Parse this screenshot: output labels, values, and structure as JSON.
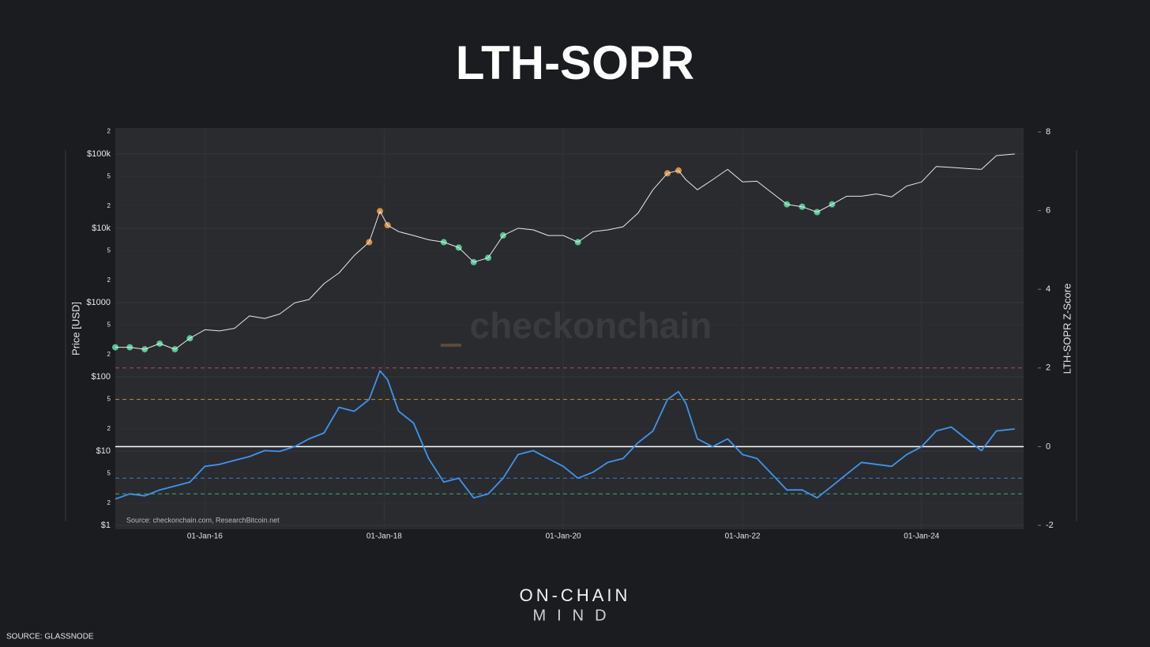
{
  "title": "LTH-SOPR",
  "chart_data": {
    "type": "line",
    "xlim": [
      "2015-01-01",
      "2025-02-20"
    ],
    "xticks": [
      {
        "value": "2016-01-01",
        "label": "01-Jan-16"
      },
      {
        "value": "2018-01-01",
        "label": "01-Jan-18"
      },
      {
        "value": "2020-01-01",
        "label": "01-Jan-20"
      },
      {
        "value": "2022-01-01",
        "label": "01-Jan-22"
      },
      {
        "value": "2024-01-01",
        "label": "01-Jan-24"
      }
    ],
    "ylabel": "Price [USD]",
    "yscale": "log",
    "ylim": [
      0.885,
      224000
    ],
    "yticks": [
      {
        "value": 1,
        "label": "$1"
      },
      2,
      5,
      {
        "value": 10,
        "label": "$10"
      },
      {
        "value": 20,
        "label": "2"
      },
      {
        "value": 50,
        "label": "5"
      },
      {
        "value": 100,
        "label": "$100"
      },
      {
        "value": 200,
        "label": "2"
      },
      {
        "value": 500,
        "label": "5"
      },
      {
        "value": 1000,
        "label": "$1000"
      },
      {
        "value": 2000,
        "label": "2"
      },
      {
        "value": 5000,
        "label": "5"
      },
      {
        "value": 10000,
        "label": "$10k"
      },
      {
        "value": 20000,
        "label": "2"
      },
      {
        "value": 50000,
        "label": "5"
      },
      {
        "value": 100000,
        "label": "$100k"
      },
      {
        "value": 200000,
        "label": "2"
      }
    ],
    "y2label": "LTH-SOPR Z-Score",
    "y2lim": [
      -2.1,
      8.1
    ],
    "y2ticks": [
      -2,
      0,
      2,
      4,
      6,
      8
    ],
    "grid": true,
    "x": [
      "2015-01-01",
      "2015-03-01",
      "2015-05-01",
      "2015-07-01",
      "2015-09-01",
      "2015-11-01",
      "2016-01-01",
      "2016-03-01",
      "2016-05-01",
      "2016-07-01",
      "2016-09-01",
      "2016-11-01",
      "2017-01-01",
      "2017-03-01",
      "2017-05-01",
      "2017-07-01",
      "2017-09-01",
      "2017-11-01",
      "2017-12-15",
      "2018-01-15",
      "2018-03-01",
      "2018-05-01",
      "2018-07-01",
      "2018-09-01",
      "2018-11-01",
      "2019-01-01",
      "2019-03-01",
      "2019-05-01",
      "2019-07-01",
      "2019-09-01",
      "2019-11-01",
      "2020-01-01",
      "2020-03-01",
      "2020-05-01",
      "2020-07-01",
      "2020-09-01",
      "2020-11-01",
      "2021-01-01",
      "2021-03-01",
      "2021-04-15",
      "2021-05-15",
      "2021-07-01",
      "2021-09-01",
      "2021-11-01",
      "2022-01-01",
      "2022-03-01",
      "2022-05-01",
      "2022-07-01",
      "2022-09-01",
      "2022-11-01",
      "2023-01-01",
      "2023-03-01",
      "2023-05-01",
      "2023-07-01",
      "2023-09-01",
      "2023-11-01",
      "2024-01-01",
      "2024-03-01",
      "2024-05-01",
      "2024-07-01",
      "2024-09-01",
      "2024-11-01",
      "2025-01-15"
    ],
    "series": [
      {
        "name": "Price",
        "color": "#e8e8e8",
        "values": [
          250,
          250,
          235,
          280,
          235,
          330,
          430,
          415,
          450,
          660,
          610,
          700,
          990,
          1100,
          1800,
          2500,
          4300,
          6500,
          17000,
          11000,
          9000,
          8000,
          7000,
          6500,
          5500,
          3500,
          4000,
          8000,
          10000,
          9500,
          8000,
          8000,
          6500,
          9000,
          9500,
          10500,
          16000,
          33000,
          55000,
          60000,
          45000,
          33000,
          45000,
          62000,
          42000,
          43000,
          30000,
          21000,
          19500,
          16500,
          21000,
          27000,
          27000,
          29000,
          26500,
          37000,
          42000,
          68000,
          66000,
          64000,
          62000,
          95000,
          100000
        ]
      },
      {
        "name": "LTH-SOPR Z-Score",
        "color": "#3d94f0",
        "axis": "y2",
        "values": [
          -1.33,
          -1.2,
          -1.25,
          -1.1,
          -1.0,
          -0.9,
          -0.5,
          -0.45,
          -0.35,
          -0.25,
          -0.1,
          -0.12,
          0,
          0.2,
          0.35,
          1.0,
          0.9,
          1.2,
          1.93,
          1.7,
          0.9,
          0.6,
          -0.3,
          -0.9,
          -0.8,
          -1.3,
          -1.2,
          -0.8,
          -0.2,
          -0.1,
          -0.3,
          -0.5,
          -0.8,
          -0.65,
          -0.4,
          -0.3,
          0.1,
          0.4,
          1.2,
          1.4,
          1.1,
          0.2,
          0.0,
          0.2,
          -0.2,
          -0.3,
          -0.7,
          -1.1,
          -1.1,
          -1.3,
          -1.0,
          -0.7,
          -0.4,
          -0.45,
          -0.5,
          -0.2,
          0.0,
          0.4,
          0.5,
          0.2,
          -0.1,
          0.4,
          0.45
        ]
      }
    ],
    "bands": [
      {
        "value": 2,
        "color": "#e0506a"
      },
      {
        "value": 1.2,
        "color": "#f0a040"
      },
      {
        "value": 0,
        "color": "#ffffff"
      },
      {
        "value": -0.8,
        "color": "#3d94f0"
      },
      {
        "value": -1.2,
        "color": "#3ecf8e"
      }
    ],
    "highlight": {
      "high_color": "#f5a04a",
      "low_color": "#5de3a8"
    },
    "watermark": "checkonchain",
    "source_note": "Source: checkonchain.com, ResearchBitcoin.net"
  },
  "footer": {
    "brand_top": "ON-CHAIN",
    "brand_bottom": "MIND",
    "source": "SOURCE: GLASSNODE"
  }
}
